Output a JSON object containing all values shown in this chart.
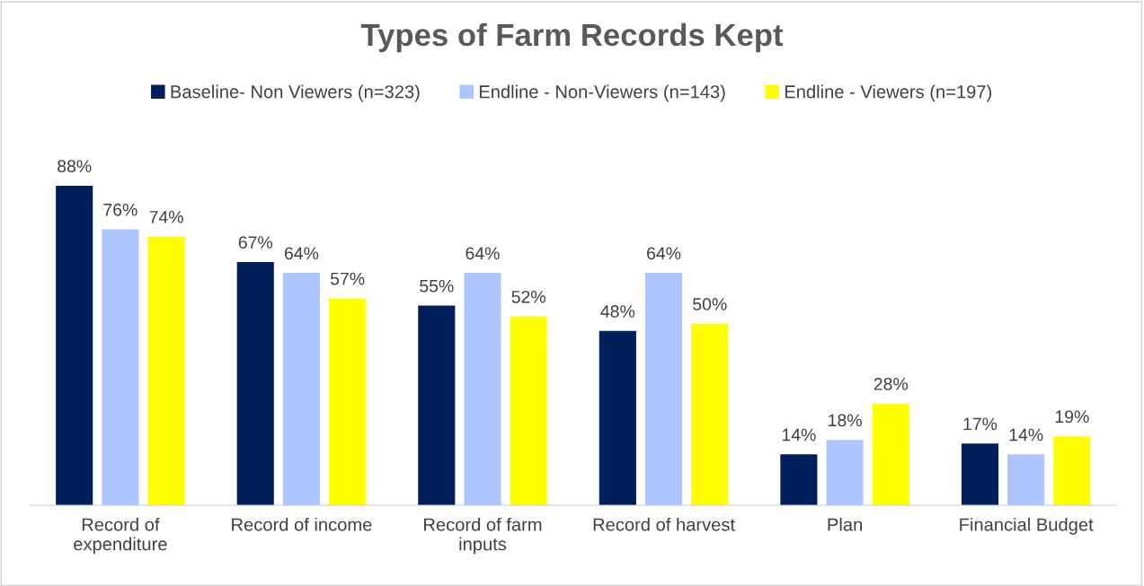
{
  "chart_data": {
    "type": "bar",
    "title": "Types of Farm Records Kept",
    "categories": [
      "Record of\nexpenditure",
      "Record of income",
      "Record of farm\ninputs",
      "Record of harvest",
      "Plan",
      "Financial Budget"
    ],
    "series": [
      {
        "name": "Baseline- Non Viewers (n=323)",
        "color": "#001f5b",
        "values": [
          88,
          67,
          55,
          48,
          14,
          17
        ],
        "value_labels": [
          "88%",
          "67%",
          "55%",
          "48%",
          "14%",
          "17%"
        ]
      },
      {
        "name": "Endline - Non-Viewers (n=143)",
        "color": "#adc6ff",
        "values": [
          76,
          64,
          64,
          64,
          18,
          14
        ],
        "value_labels": [
          "76%",
          "64%",
          "64%",
          "64%",
          "18%",
          "14%"
        ]
      },
      {
        "name": "Endline - Viewers (n=197)",
        "color": "#ffff00",
        "values": [
          74,
          57,
          52,
          50,
          28,
          19
        ],
        "value_labels": [
          "74%",
          "57%",
          "52%",
          "50%",
          "28%",
          "19%"
        ]
      }
    ],
    "legend": "top"
  }
}
